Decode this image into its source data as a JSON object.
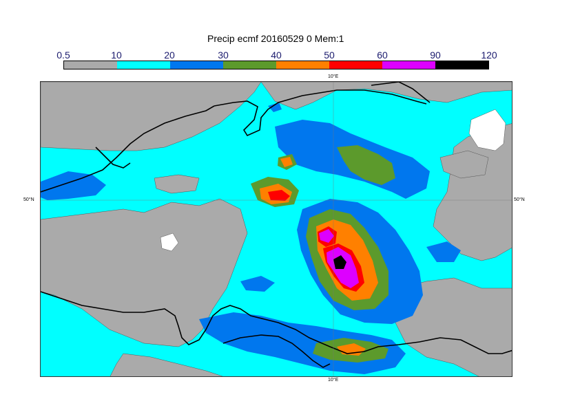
{
  "title": "Precip ecmf 20160529 0 Mem:1",
  "legend": {
    "labels": [
      "0.5",
      "10",
      "20",
      "30",
      "40",
      "50",
      "60",
      "90",
      "120"
    ],
    "colors": [
      "#aaaaaa",
      "#00ffff",
      "#0077ee",
      "#5c9a2c",
      "#ff8000",
      "#ff0000",
      "#dd00ff",
      "#000000"
    ]
  },
  "map": {
    "colors": {
      "land": "#aaaaaa",
      "light": "#00ffff",
      "blue": "#0077ee",
      "green": "#5c9a2c",
      "orange": "#ff8000",
      "red": "#ff0000",
      "magenta": "#dd00ff",
      "black": "#000000",
      "white": "#ffffff"
    },
    "labels": {
      "lon_top": "10°E",
      "lon_bottom": "10°E",
      "lat_left": "50°N",
      "lat_right": "50°N"
    }
  }
}
